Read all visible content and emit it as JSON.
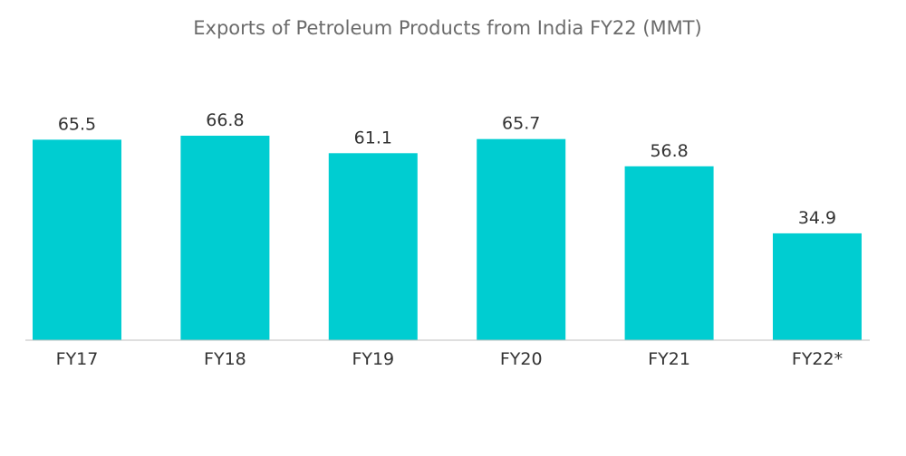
{
  "chart_data": {
    "type": "bar",
    "title": "Exports of Petroleum Products from India FY22 (MMT)",
    "categories": [
      "FY17",
      "FY18",
      "FY19",
      "FY20",
      "FY21",
      "FY22*"
    ],
    "values": [
      65.5,
      66.8,
      61.1,
      65.7,
      56.8,
      34.9
    ],
    "value_labels": [
      "65.5",
      "66.8",
      "61.1",
      "65.7",
      "56.8",
      "34.9"
    ],
    "xlabel": "",
    "ylabel": "",
    "ylim": [
      0,
      66.8
    ],
    "grid": false,
    "legend": "none",
    "bar_color": "#00cdd1",
    "axis_color": "#bfbfbf"
  }
}
